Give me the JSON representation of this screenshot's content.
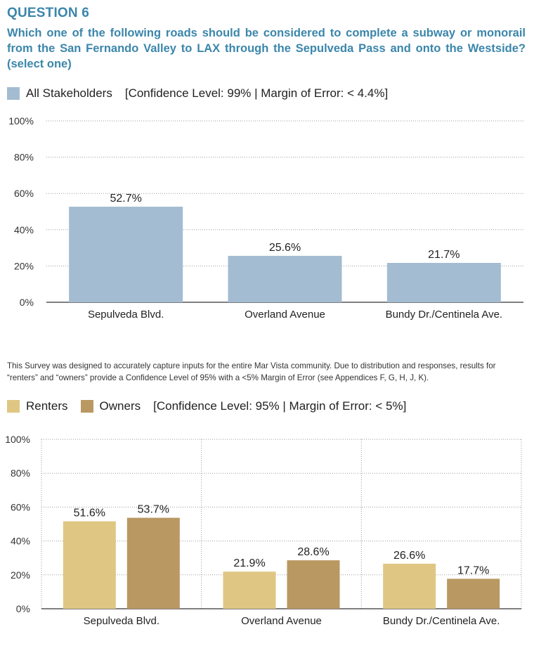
{
  "question": {
    "heading": "QUESTION 6",
    "text": "Which one of the following roads should be considered to complete a subway or monorail from the San Fernando Valley to LAX through the Sepulveda Pass and onto the Westside? (select one)"
  },
  "legend_top": {
    "series": "All Stakeholders",
    "stats": "[Confidence Level: 99%  |  Margin of Error: < 4.4%]"
  },
  "note": "This Survey was designed to accurately capture inputs for the entire Mar Vista community. Due to distribution and responses, results for “renters” and “owners” provide a Confidence Level of 95% with a <5% Margin of Error (see Appendices F, G, H, J, K).",
  "legend_bottom": {
    "series_a": "Renters",
    "series_b": "Owners",
    "stats": "[Confidence Level: 95%  |  Margin of Error: < 5%]"
  },
  "colors": {
    "heading": "#3b86ab",
    "stakeholders": "#a3bcd1",
    "renters": "#dfc783",
    "owners": "#b99862"
  },
  "chart_data": [
    {
      "type": "bar",
      "categories": [
        "Sepulveda Blvd.",
        "Overland Avenue",
        "Bundy Dr./Centinela Ave."
      ],
      "series": [
        {
          "name": "All Stakeholders",
          "values": [
            52.7,
            25.6,
            21.7
          ],
          "labels": [
            "52.7%",
            "25.6%",
            "21.7%"
          ]
        }
      ],
      "yticks": [
        "0%",
        "20%",
        "40%",
        "60%",
        "80%",
        "100%"
      ],
      "ylim": [
        0,
        100
      ],
      "grid": "dotted horizontal"
    },
    {
      "type": "bar",
      "categories": [
        "Sepulveda Blvd.",
        "Overland Avenue",
        "Bundy Dr./Centinela Ave."
      ],
      "series": [
        {
          "name": "Renters",
          "values": [
            51.6,
            21.9,
            26.6
          ],
          "labels": [
            "51.6%",
            "21.9%",
            "26.6%"
          ]
        },
        {
          "name": "Owners",
          "values": [
            53.7,
            28.6,
            17.7
          ],
          "labels": [
            "53.7%",
            "28.6%",
            "17.7%"
          ]
        }
      ],
      "yticks": [
        "0%",
        "20%",
        "40%",
        "60%",
        "80%",
        "100%"
      ],
      "ylim": [
        0,
        100
      ],
      "grid": "dotted horizontal and vertical"
    }
  ]
}
